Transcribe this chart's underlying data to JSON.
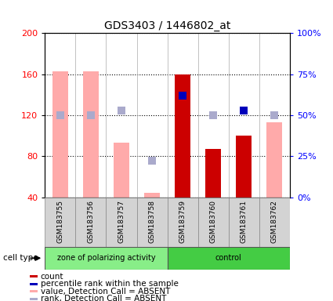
{
  "title": "GDS3403 / 1446802_at",
  "samples": [
    "GSM183755",
    "GSM183756",
    "GSM183757",
    "GSM183758",
    "GSM183759",
    "GSM183760",
    "GSM183761",
    "GSM183762"
  ],
  "ylim_left": [
    40,
    200
  ],
  "ylim_right": [
    0,
    100
  ],
  "yticks_left": [
    40,
    80,
    120,
    160,
    200
  ],
  "ytick_labels_right": [
    "0%",
    "25%",
    "50%",
    "75%",
    "100%"
  ],
  "bar_values": [
    null,
    null,
    null,
    null,
    160,
    87,
    100,
    null
  ],
  "bar_absent_values": [
    163,
    163,
    93,
    44,
    null,
    null,
    null,
    113
  ],
  "rank_values": [
    null,
    null,
    null,
    null,
    62,
    null,
    53,
    null
  ],
  "rank_absent_values": [
    50,
    50,
    53,
    22,
    null,
    50,
    null,
    50
  ],
  "bar_color": "#cc0000",
  "bar_absent_color": "#ffaaaa",
  "rank_color": "#0000bb",
  "rank_absent_color": "#aaaacc",
  "bar_width": 0.5,
  "dot_size": 55,
  "legend_items": [
    {
      "label": "count",
      "color": "#cc0000"
    },
    {
      "label": "percentile rank within the sample",
      "color": "#0000bb"
    },
    {
      "label": "value, Detection Call = ABSENT",
      "color": "#ffaaaa"
    },
    {
      "label": "rank, Detection Call = ABSENT",
      "color": "#aaaacc"
    }
  ]
}
